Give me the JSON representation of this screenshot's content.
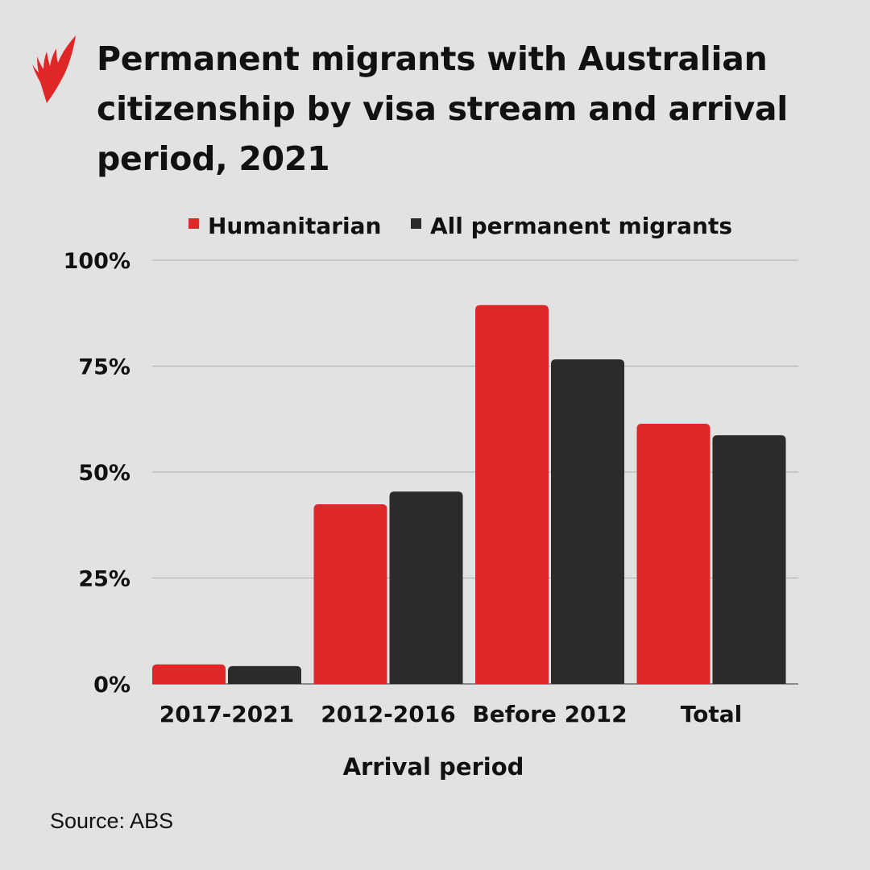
{
  "chart_data": {
    "type": "bar",
    "title": "Permanent migrants with Australian citizenship by visa stream and arrival period, 2021",
    "xlabel": "Arrival period",
    "ylabel": "",
    "ylim": [
      0,
      100
    ],
    "yticks": [
      "0%",
      "25%",
      "50%",
      "75%",
      "100%"
    ],
    "ytick_values": [
      0,
      25,
      50,
      75,
      100
    ],
    "grid": true,
    "legend_placement": "top",
    "categories": [
      "2017-2021",
      "2012-2016",
      "Before 2012",
      "Total"
    ],
    "series": [
      {
        "name": "Humanitarian",
        "color": "#e02626",
        "values": [
          4.6,
          42.4,
          89.4,
          61.4
        ]
      },
      {
        "name": "All permanent migrants",
        "color": "#2b2b2b",
        "values": [
          4.2,
          45.4,
          76.6,
          58.7
        ]
      }
    ]
  },
  "source": "Source: ABS",
  "colors": {
    "background": "#e2e2e2",
    "logo": "#e02626",
    "grid": "#b8b8b8"
  }
}
